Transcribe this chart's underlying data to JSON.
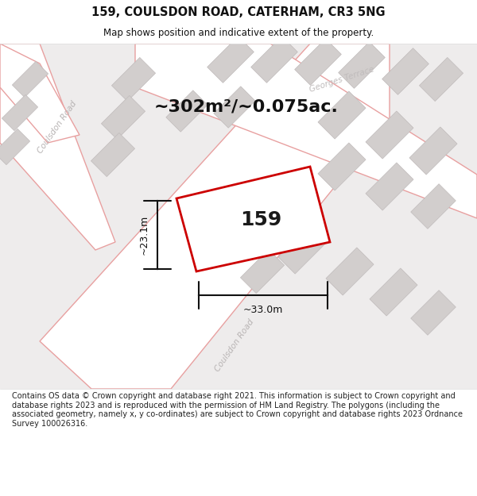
{
  "title": "159, COULSDON ROAD, CATERHAM, CR3 5NG",
  "subtitle": "Map shows position and indicative extent of the property.",
  "footer": "Contains OS data © Crown copyright and database right 2021. This information is subject to Crown copyright and database rights 2023 and is reproduced with the permission of HM Land Registry. The polygons (including the associated geometry, namely x, y co-ordinates) are subject to Crown copyright and database rights 2023 Ordnance Survey 100026316.",
  "area_text": "~302m²/~0.075ac.",
  "property_label": "159",
  "dim_width": "~33.0m",
  "dim_height": "~23.1m",
  "bg_color": "#f2f0f0",
  "map_bg": "#eeecec",
  "title_color": "#111111",
  "footer_color": "#222222",
  "road_fill": "#ffffff",
  "road_stroke": "#e8a0a0",
  "building_fill": "#d2cecd",
  "building_stroke": "#c0bbbb",
  "property_fill": "#ffffff",
  "property_stroke": "#cc0000"
}
